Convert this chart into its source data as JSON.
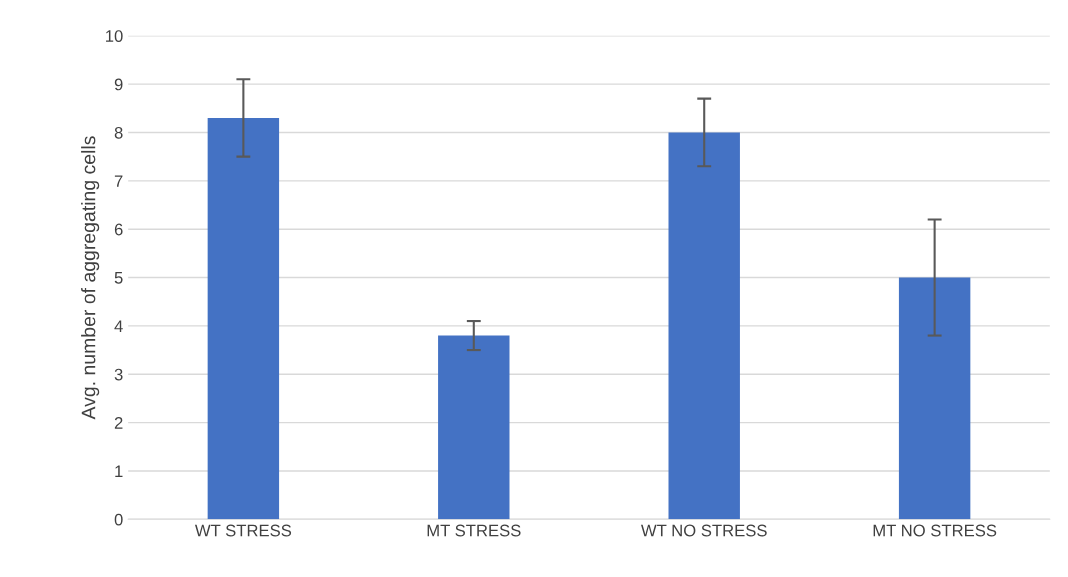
{
  "chart_data": {
    "type": "bar",
    "ylabel": "Avg. number of aggregating cells",
    "categories": [
      "WT STRESS",
      "MT STRESS",
      "WT NO STRESS",
      "MT NO STRESS"
    ],
    "values": [
      8.3,
      3.8,
      8.0,
      5.0
    ],
    "errors": [
      0.8,
      0.3,
      0.7,
      1.2
    ],
    "color": "#4472c4",
    "ylim": [
      0,
      10
    ],
    "yticks": [
      0,
      1,
      2,
      3,
      4,
      5,
      6,
      7,
      8,
      9,
      10
    ],
    "grid": "y",
    "legend": false
  }
}
